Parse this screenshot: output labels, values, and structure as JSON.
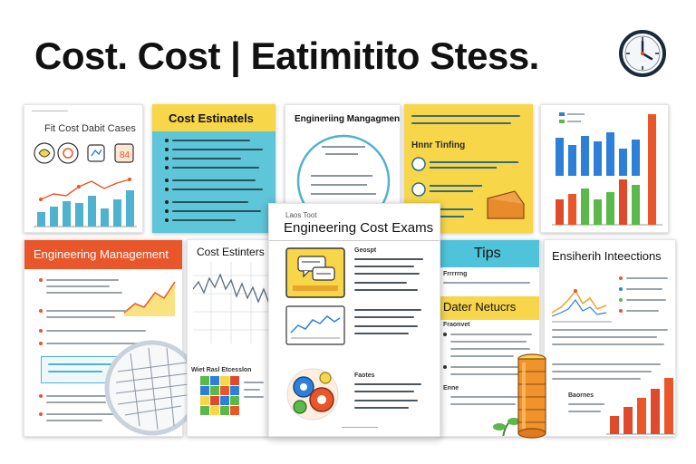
{
  "title": "Cost. Cost | Eatimitito Stess.",
  "cards": {
    "c1": {
      "header": "Fit Cost Dabit Cases"
    },
    "c2": {
      "header": "Cost Estinatels"
    },
    "c3": {
      "header": "Engineriing Mangagment"
    },
    "c3b": {
      "label": "Hnnr Tinfing"
    },
    "c6": {
      "header": "Engineering Management"
    },
    "c7": {
      "header": "Cost Estinters",
      "sub": "Wiet Rasl Etcesslon"
    },
    "c8": {
      "kicker": "Laos Toot",
      "header": "Engineering Cost Exams",
      "label1": "Geospt",
      "label2": "Faotes"
    },
    "c9": {
      "header": "Tips",
      "sub": "Dater Netucrs",
      "label1": "Frrrrrng",
      "label2": "Fraonvet",
      "label3": "Enne"
    },
    "c10": {
      "header": "Ensiherih Inteections",
      "label": "Baornes"
    }
  },
  "colors": {
    "yellow": "#f7d64a",
    "teal": "#4fc3d9",
    "orange": "#e8562a",
    "blue": "#2d7fd8",
    "green": "#5bb84a",
    "red": "#e04a2c"
  }
}
